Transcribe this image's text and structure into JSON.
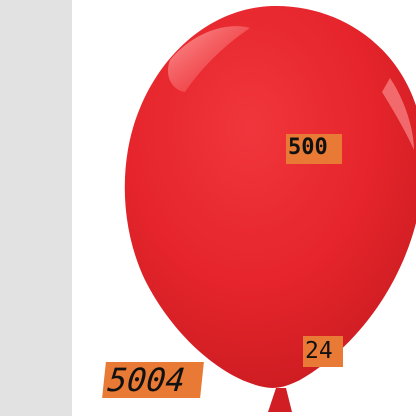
{
  "scene": {
    "subject": "red-balloon",
    "colors": {
      "balloon": "#e5252b",
      "balloon_dark": "#c81b20",
      "highlight": "#ff8a8a",
      "background": "#ffffff",
      "left_strip": "#e2e2e2",
      "tag": "#e87a35"
    }
  },
  "labels": {
    "center": "500",
    "knot": "24",
    "bottom_left": "5004"
  }
}
